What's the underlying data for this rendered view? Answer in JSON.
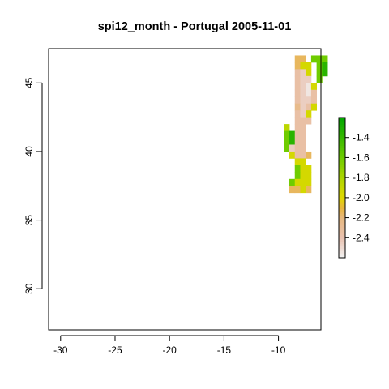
{
  "chart_data": {
    "type": "heatmap",
    "title": "spi12_month - Portugal 2005-11-01",
    "xlabel": "",
    "ylabel": "",
    "xlim": [
      -31.1,
      -6.1
    ],
    "ylim": [
      27.0,
      47.5
    ],
    "xticks": [
      -30,
      -25,
      -20,
      -15,
      -10
    ],
    "yticks": [
      30,
      35,
      40,
      45
    ],
    "grid": false,
    "cell_size_deg": 0.5,
    "grid_origin": {
      "lon": -9.5,
      "lat": 37.0
    },
    "raster_rows_north_to_south": [
      "..oo.ggg",
      "..oyy.gG",
      "..pLy.gG",
      "..pLL.g.",
      "..pLWy..",
      "..pLWp..",
      "..pLLp..",
      "..aLpy..",
      "..pLy...",
      "..ppp...",
      "Y.pp....",
      "gGpp....",
      "gGpp....",
      "gLpp....",
      ".yppo...",
      "..yy....",
      "..gyy...",
      "..gyy...",
      ".gyyy...",
      ".ooyo..."
    ],
    "value_legend": {
      "W": -2.55,
      "L": -2.45,
      "p": -2.35,
      "a": -2.25,
      "o": -2.15,
      "y": -1.95,
      "Y": -1.85,
      "g": -1.6,
      "G": -1.35
    },
    "color_scale": {
      "range": [
        -2.6,
        -1.2
      ],
      "ticks": [
        -1.4,
        -1.6,
        -1.8,
        -2.0,
        -2.2,
        -2.4
      ],
      "stops": [
        {
          "value": -2.6,
          "color": "#f2f2f2"
        },
        {
          "value": -2.4,
          "color": "#e9c2b1"
        },
        {
          "value": -2.2,
          "color": "#e7b87f"
        },
        {
          "value": -2.1,
          "color": "#e8b53d"
        },
        {
          "value": -2.0,
          "color": "#e0d800"
        },
        {
          "value": -1.8,
          "color": "#aed600"
        },
        {
          "value": -1.6,
          "color": "#6fcc00"
        },
        {
          "value": -1.2,
          "color": "#00a600"
        }
      ]
    }
  }
}
